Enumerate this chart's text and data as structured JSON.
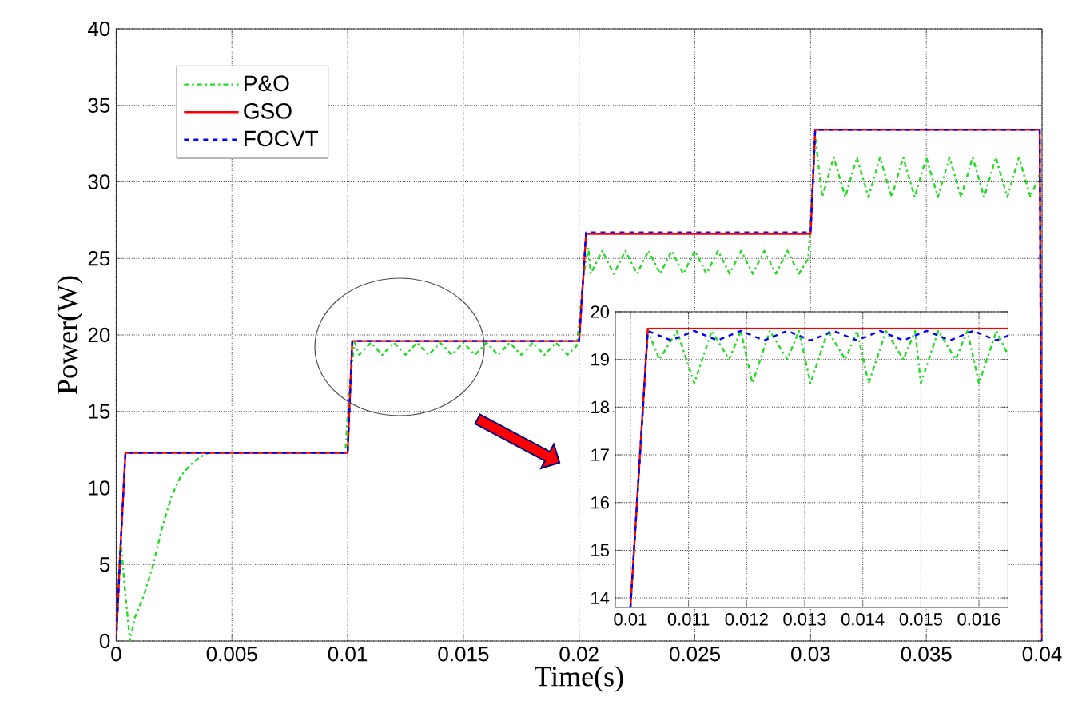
{
  "chart_data": [
    {
      "type": "line",
      "xlabel": "Time(s)",
      "ylabel": "Power(W)",
      "xlim": [
        0,
        0.04
      ],
      "ylim": [
        0,
        40
      ],
      "xticks": [
        0,
        0.005,
        0.01,
        0.015,
        0.02,
        0.025,
        0.03,
        0.035,
        0.04
      ],
      "yticks": [
        0,
        5,
        10,
        15,
        20,
        25,
        30,
        35,
        40
      ],
      "grid": true,
      "legend": "top left",
      "series": [
        {
          "name": "P&O",
          "color": "#22dd22",
          "line_style": "dashdot",
          "x": [
            0,
            0.0001,
            0.0002,
            0.0004,
            0.0006,
            0.0008,
            0.0012,
            0.0016,
            0.002,
            0.0024,
            0.0028,
            0.0032,
            0.0036,
            0.004,
            0.0099,
            0.0101,
            0.0103,
            0.0105,
            0.011,
            0.0115,
            0.012,
            0.0125,
            0.013,
            0.0135,
            0.014,
            0.0145,
            0.015,
            0.0155,
            0.016,
            0.0165,
            0.017,
            0.0175,
            0.018,
            0.0185,
            0.019,
            0.0195,
            0.0199,
            0.0202,
            0.0204,
            0.0205,
            0.021,
            0.0215,
            0.022,
            0.0225,
            0.023,
            0.0235,
            0.024,
            0.0245,
            0.025,
            0.0255,
            0.026,
            0.0265,
            0.027,
            0.0275,
            0.028,
            0.0285,
            0.029,
            0.0295,
            0.0299,
            0.0301,
            0.0302,
            0.0305,
            0.031,
            0.0315,
            0.032,
            0.0325,
            0.033,
            0.0335,
            0.034,
            0.0345,
            0.035,
            0.0355,
            0.036,
            0.0365,
            0.037,
            0.0375,
            0.038,
            0.0385,
            0.039,
            0.0395,
            0.0399
          ],
          "values": [
            0,
            4,
            6.5,
            3,
            0,
            1.5,
            3,
            5,
            7.5,
            9.5,
            10.8,
            11.5,
            12,
            12.3,
            12.3,
            17,
            19.5,
            18.7,
            19.5,
            18.7,
            19.5,
            18.7,
            19.5,
            18.7,
            19.5,
            18.7,
            19.5,
            18.7,
            19.5,
            18.7,
            19.5,
            18.7,
            19.5,
            18.7,
            19.5,
            18.7,
            19.3,
            24,
            25.7,
            24,
            25.5,
            24,
            25.5,
            24,
            25.5,
            24,
            25.5,
            24,
            25.5,
            24,
            25.5,
            24,
            25.5,
            24,
            25.5,
            24,
            25.5,
            24,
            25,
            30,
            33,
            29,
            31.6,
            29,
            31.6,
            29,
            31.6,
            29,
            31.6,
            29,
            31.6,
            29,
            31.6,
            29,
            31.6,
            29,
            31.6,
            29,
            31.6,
            29,
            30.5
          ]
        },
        {
          "name": "GSO",
          "color": "#ff0000",
          "line_style": "solid",
          "x": [
            0,
            0.0002,
            0.0004,
            0.01,
            0.0102,
            0.02,
            0.0203,
            0.03,
            0.0302,
            0.0399,
            0.04
          ],
          "values": [
            0,
            6.5,
            12.3,
            12.3,
            19.6,
            19.6,
            26.6,
            26.6,
            33.4,
            33.4,
            0
          ]
        },
        {
          "name": "FOCVT",
          "color": "#0000ff",
          "line_style": "dashed",
          "x": [
            0,
            0.0002,
            0.0004,
            0.01,
            0.0102,
            0.02,
            0.0203,
            0.03,
            0.0302,
            0.0399,
            0.04
          ],
          "values": [
            0,
            6.5,
            12.3,
            12.3,
            19.6,
            19.6,
            26.7,
            26.7,
            33.4,
            33.4,
            0
          ]
        }
      ]
    },
    {
      "type": "line",
      "xlim": [
        0.00974,
        0.0165
      ],
      "ylim": [
        13.8,
        20
      ],
      "xticks": [
        0.01,
        0.011,
        0.012,
        0.013,
        0.014,
        0.015,
        0.016
      ],
      "yticks": [
        14,
        15,
        16,
        17,
        18,
        19,
        20
      ],
      "grid": true,
      "series": [
        {
          "color": "#22dd22",
          "line_style": "dashdot",
          "x": [
            0.01,
            0.0103,
            0.0105,
            0.0108,
            0.0111,
            0.0114,
            0.0117,
            0.0119,
            0.0121,
            0.0124,
            0.0127,
            0.0129,
            0.0131,
            0.0134,
            0.0137,
            0.0139,
            0.0141,
            0.0144,
            0.0147,
            0.0149,
            0.015,
            0.0153,
            0.0156,
            0.0158,
            0.016,
            0.0163,
            0.0165
          ],
          "values": [
            13.8,
            19.6,
            19,
            19.6,
            18.5,
            19.6,
            19,
            19.6,
            18.5,
            19.6,
            19,
            19.6,
            18.5,
            19.6,
            19,
            19.6,
            18.5,
            19.6,
            19,
            19.6,
            18.5,
            19.6,
            19,
            19.6,
            18.5,
            19.6,
            19.1
          ]
        },
        {
          "color": "#ff0000",
          "line_style": "solid",
          "x": [
            0.01,
            0.0103,
            0.0165
          ],
          "values": [
            13.8,
            19.65,
            19.65
          ]
        },
        {
          "color": "#0000ff",
          "line_style": "dashed",
          "x": [
            0.01,
            0.0103,
            0.0107,
            0.0111,
            0.0115,
            0.0119,
            0.0123,
            0.0127,
            0.0131,
            0.0135,
            0.0139,
            0.0143,
            0.0147,
            0.0151,
            0.0155,
            0.0159,
            0.0163,
            0.0165
          ],
          "values": [
            13.8,
            19.6,
            19.4,
            19.6,
            19.4,
            19.6,
            19.4,
            19.6,
            19.4,
            19.6,
            19.4,
            19.6,
            19.4,
            19.6,
            19.4,
            19.6,
            19.4,
            19.5
          ]
        }
      ]
    }
  ]
}
